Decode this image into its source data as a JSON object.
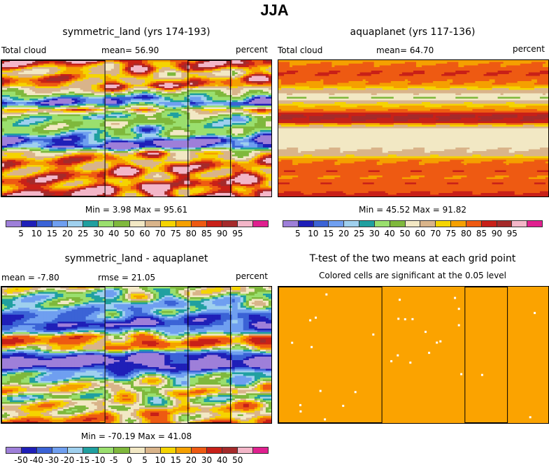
{
  "figure_title": "JJA",
  "panels": {
    "sym": {
      "title": "symmetric_land (yrs 174-193)",
      "left_label": "Total cloud",
      "mean_label": "mean=  56.90",
      "right_label": "percent",
      "stats": "Min =   3.98 Max =  95.61"
    },
    "aqua": {
      "title": "aquaplanet (yrs 117-136)",
      "left_label": "Total cloud",
      "mean_label": "mean=  64.70",
      "right_label": "percent",
      "stats": "Min =  45.52 Max =  91.82"
    },
    "diff": {
      "title": "symmetric_land - aquaplanet",
      "left_label": "mean =   -7.80",
      "mean_label": "rmse =  21.05",
      "right_label": "percent",
      "stats": "Min = -70.19 Max =  41.08"
    },
    "ttest": {
      "title": "T-test of the two means at each grid point",
      "subtitle": "Colored cells are significant at the 0.05 level"
    }
  },
  "colors": {
    "cloud_scale": [
      "#9e7fd9",
      "#1f1fb8",
      "#3b63d6",
      "#6f9ff0",
      "#9fd0ee",
      "#20a0a0",
      "#9adf6e",
      "#7fb83c",
      "#f2e8c4",
      "#d9b48a",
      "#f5d400",
      "#f5a000",
      "#ee5a12",
      "#c82018",
      "#a52a2a",
      "#f3b6c8",
      "#e0208f"
    ],
    "diff_scale": [
      "#9e7fd9",
      "#1f1fb8",
      "#3b63d6",
      "#6f9ff0",
      "#9fd0ee",
      "#20a0a0",
      "#9adf6e",
      "#7fb83c",
      "#f2e8c4",
      "#d9b48a",
      "#f5d400",
      "#f5a000",
      "#ee5a12",
      "#c82018",
      "#a52a2a",
      "#f3b6c8",
      "#e0208f"
    ],
    "ttest_fill": "#fba300",
    "land_outline": "#000000"
  },
  "chart_data": [
    {
      "type": "heatmap",
      "title": "symmetric_land (yrs 174-193)",
      "variable": "Total cloud",
      "units": "percent",
      "mean": 56.9,
      "min": 3.98,
      "max": 95.61,
      "colorbar_levels": [
        5,
        10,
        15,
        20,
        25,
        30,
        40,
        50,
        60,
        70,
        75,
        80,
        85,
        90,
        95
      ],
      "colorbar_labels": [
        "5",
        "10",
        "15",
        "20",
        "25",
        "30",
        "40",
        "50",
        "60",
        "70",
        "75",
        "80",
        "85",
        "90",
        "95"
      ],
      "lat_profile_top_to_bottom": [
        88,
        80,
        68,
        78,
        82,
        55,
        20,
        12,
        70,
        35,
        40,
        35,
        32,
        8,
        6,
        70,
        75,
        78,
        82,
        80,
        85,
        88,
        90
      ],
      "land_boxes_lon_fraction": [
        [
          0.0,
          0.385
        ],
        [
          0.69,
          0.85
        ]
      ]
    },
    {
      "type": "heatmap",
      "title": "aquaplanet (yrs 117-136)",
      "variable": "Total cloud",
      "units": "percent",
      "mean": 64.7,
      "min": 45.52,
      "max": 91.82,
      "colorbar_levels": [
        5,
        10,
        15,
        20,
        25,
        30,
        40,
        50,
        60,
        70,
        75,
        80,
        85,
        90,
        95
      ],
      "colorbar_labels": [
        "5",
        "10",
        "15",
        "20",
        "25",
        "30",
        "40",
        "50",
        "60",
        "70",
        "75",
        "80",
        "85",
        "90",
        "95"
      ],
      "lat_profile_top_to_bottom": [
        78,
        82,
        85,
        82,
        78,
        65,
        50,
        72,
        80,
        92,
        88,
        58,
        56,
        56,
        58,
        62,
        78,
        82,
        84,
        80,
        84,
        82,
        88
      ],
      "land_boxes_lon_fraction": []
    },
    {
      "type": "heatmap",
      "title": "symmetric_land - aquaplanet",
      "units": "percent",
      "mean": -7.8,
      "rmse": 21.05,
      "min": -70.19,
      "max": 41.08,
      "colorbar_levels": [
        -50,
        -40,
        -30,
        -20,
        -15,
        -10,
        -5,
        0,
        5,
        10,
        15,
        20,
        30,
        40,
        50
      ],
      "colorbar_labels": [
        "-50",
        "-40",
        "-30",
        "-20",
        "-15",
        "-10",
        "-5",
        "0",
        "5",
        "10",
        "15",
        "20",
        "30",
        "40",
        "50"
      ],
      "lat_profile_top_to_bottom": [
        2,
        -5,
        -10,
        -18,
        -22,
        -35,
        -45,
        -25,
        15,
        25,
        10,
        -45,
        -60,
        -50,
        -20,
        -8,
        3,
        8,
        -5,
        5,
        10,
        12,
        20
      ],
      "land_boxes_lon_fraction": [
        [
          0.0,
          0.385
        ],
        [
          0.69,
          0.85
        ]
      ]
    },
    {
      "type": "heatmap",
      "title": "T-test of the two means at each grid point",
      "subtitle": "Colored cells are significant at the 0.05 level",
      "fill": "significant",
      "land_boxes_lon_fraction": [
        [
          0.0,
          0.385
        ],
        [
          0.69,
          0.85
        ]
      ]
    }
  ]
}
